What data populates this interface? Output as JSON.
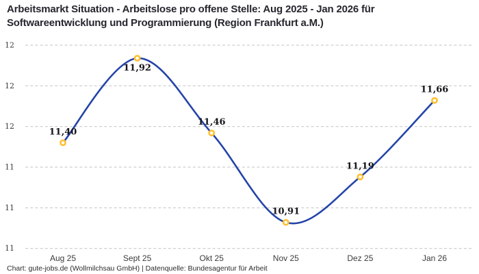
{
  "title": {
    "line1": "Arbeitsmarkt Situation - Arbeitslose pro offene Stelle: Aug 2025 - Jan 2026 für",
    "line2": "Softwareentwicklung und Programmierung (Region Frankfurt a.M.)"
  },
  "footer": {
    "attribution": "Chart: gute-jobs.de (Wollmilchsau GmbH) | Datenquelle: Bundesagentur für Arbeit"
  },
  "chart_data": {
    "type": "line",
    "title": "Arbeitsmarkt Situation - Arbeitslose pro offene Stelle: Aug 2025 - Jan 2026 für Softwareentwicklung und Programmierung (Region Frankfurt a.M.)",
    "categories": [
      "Aug 25",
      "Sept 25",
      "Okt 25",
      "Nov 25",
      "Dez 25",
      "Jan 26"
    ],
    "values": [
      11.4,
      11.92,
      11.46,
      10.91,
      11.19,
      11.66
    ],
    "point_labels": [
      "11,40",
      "11,92",
      "11,46",
      "10,91",
      "11,19",
      "11,66"
    ],
    "label_positions": [
      "above",
      "below",
      "above",
      "above",
      "above",
      "above"
    ],
    "y_ticks": [
      12.0,
      11.75,
      11.5,
      11.25,
      11.0,
      10.75
    ],
    "y_tick_labels": [
      "12",
      "12",
      "12",
      "11",
      "11",
      "11"
    ],
    "ylim": [
      10.75,
      12.0
    ],
    "xlabel": "",
    "ylabel": "",
    "grid": "horizontal-dashed",
    "legend": "none",
    "colors": {
      "line": "#2444A8",
      "marker_ring": "#FFC02F",
      "marker_fill": "#FFFFFF",
      "gridline": "#C2C2C2",
      "tick_text": "#3B3B3B",
      "data_label": "#16161B",
      "title_text": "#26262E",
      "footer_text": "#2B2B2B",
      "background": "#FFFFFF"
    }
  }
}
